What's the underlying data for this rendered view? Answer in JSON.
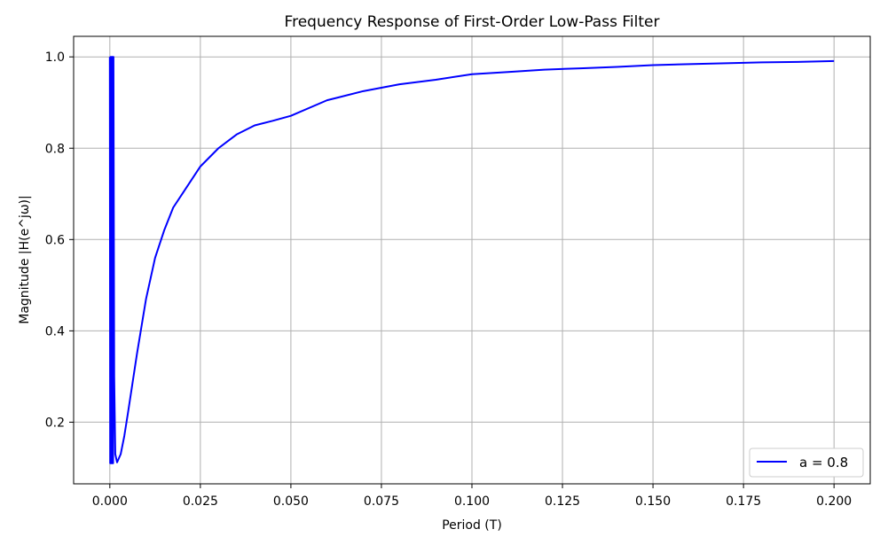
{
  "chart_data": {
    "type": "line",
    "title": "Frequency Response of First-Order Low-Pass Filter",
    "xlabel": "Period (T)",
    "ylabel": "Magnitude |H(e^jω)|",
    "xlim": [
      -0.01,
      0.21
    ],
    "ylim": [
      0.065,
      1.045
    ],
    "xticks": [
      0.0,
      0.025,
      0.05,
      0.075,
      0.1,
      0.125,
      0.15,
      0.175,
      0.2
    ],
    "xtick_labels": [
      "0.000",
      "0.025",
      "0.050",
      "0.075",
      "0.100",
      "0.125",
      "0.150",
      "0.175",
      "0.200"
    ],
    "yticks": [
      0.2,
      0.4,
      0.6,
      0.8,
      1.0
    ],
    "ytick_labels": [
      "0.2",
      "0.4",
      "0.6",
      "0.8",
      "1.0"
    ],
    "grid": true,
    "legend_position": "lower-right",
    "series": [
      {
        "name": "a = 0.8",
        "color": "#0000ff",
        "x": [
          0.0,
          0.0001,
          0.0002,
          0.0003,
          0.0004,
          0.0005,
          0.0006,
          0.0007,
          0.0008,
          0.0009,
          0.001,
          0.0012,
          0.0015,
          0.002,
          0.003,
          0.004,
          0.005,
          0.0075,
          0.01,
          0.0125,
          0.015,
          0.0175,
          0.02,
          0.025,
          0.03,
          0.035,
          0.04,
          0.045,
          0.05,
          0.06,
          0.07,
          0.08,
          0.09,
          0.1,
          0.11,
          0.12,
          0.13,
          0.14,
          0.15,
          0.16,
          0.17,
          0.18,
          0.19,
          0.2
        ],
        "y": [
          1.0,
          0.11,
          1.0,
          0.11,
          1.0,
          0.11,
          1.0,
          0.11,
          1.0,
          0.11,
          1.0,
          0.3,
          0.13,
          0.112,
          0.13,
          0.17,
          0.22,
          0.35,
          0.47,
          0.56,
          0.62,
          0.67,
          0.7,
          0.76,
          0.8,
          0.83,
          0.85,
          0.86,
          0.871,
          0.905,
          0.925,
          0.94,
          0.95,
          0.962,
          0.967,
          0.972,
          0.975,
          0.978,
          0.982,
          0.984,
          0.986,
          0.988,
          0.989,
          0.991
        ]
      }
    ]
  }
}
